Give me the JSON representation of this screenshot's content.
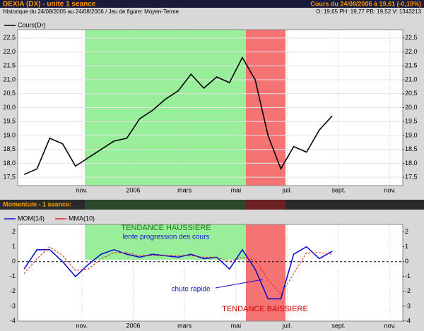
{
  "header": {
    "title": "DEXIA (DX) - unite 1 seance",
    "quote": "Cours du 24/08/2006 à 19,61 (-0,10%)",
    "history": "Historique du 24/08/2005 au 24/08/2006 / Jeu de figure: Moyen-Terme",
    "ohlc": "O: 19,65 PH: 19,77 PB: 19,52 V: 1343213"
  },
  "chart_data": [
    {
      "type": "line",
      "categories": [
        null,
        null,
        null,
        null,
        null,
        "nov.",
        null,
        null,
        null,
        "2006",
        null,
        null,
        null,
        "mars",
        null,
        null,
        null,
        "mai",
        null,
        null,
        null,
        "juil.",
        null,
        null,
        null,
        "sept.",
        null,
        null,
        null,
        "nov."
      ],
      "series": [
        {
          "name": "Cours(Dr)",
          "color": "#000000",
          "values": [
            17.6,
            17.8,
            18.9,
            18.7,
            17.9,
            18.2,
            18.5,
            18.8,
            18.9,
            19.6,
            19.9,
            20.3,
            20.6,
            21.2,
            20.7,
            21.1,
            20.9,
            21.8,
            21.0,
            19.0,
            17.8,
            18.6,
            18.4,
            19.2,
            19.7,
            null,
            null,
            null,
            null,
            null
          ]
        }
      ],
      "ylim": [
        17.2,
        22.8
      ],
      "yticks": [
        {
          "value": 17.5,
          "label": "17,5"
        },
        {
          "value": 18,
          "label": "18,0"
        },
        {
          "value": 18.5,
          "label": "18,5"
        },
        {
          "value": 19,
          "label": "19,0"
        },
        {
          "value": 19.5,
          "label": "19,5"
        },
        {
          "value": 20,
          "label": "20,0"
        },
        {
          "value": 20.5,
          "label": "20,5"
        },
        {
          "value": 21,
          "label": "21,0"
        },
        {
          "value": 21.5,
          "label": "21,5"
        },
        {
          "value": 22,
          "label": "22,0"
        },
        {
          "value": 22.5,
          "label": "22,5"
        }
      ],
      "grid": true
    },
    {
      "type": "line",
      "title": "Momentum - 1 seance:",
      "categories": [
        null,
        null,
        null,
        null,
        null,
        "nov.",
        null,
        null,
        null,
        "2006",
        null,
        null,
        null,
        "mars",
        null,
        null,
        null,
        "mai",
        null,
        null,
        null,
        "juil.",
        null,
        null,
        null,
        "sept.",
        null,
        null,
        null,
        "nov."
      ],
      "series": [
        {
          "name": "MOM(14)",
          "color": "#1010d0",
          "values": [
            -0.5,
            0.8,
            0.8,
            0,
            -1,
            -0.2,
            0.5,
            0.8,
            0.5,
            0.3,
            0.5,
            0.4,
            0.3,
            0.5,
            0.2,
            0.3,
            -0.5,
            0.8,
            -0.5,
            -2.5,
            -2.5,
            0.5,
            1.0,
            0.2,
            0.7,
            null,
            null,
            null,
            null,
            null
          ]
        },
        {
          "name": "MMA(10)",
          "color": "#e02020",
          "values": [
            -0.8,
            0.2,
            1.0,
            0.4,
            -0.6,
            -0.5,
            0.2,
            0.6,
            0.6,
            0.4,
            0.4,
            0.4,
            0.4,
            0.4,
            0.3,
            0.3,
            0.0,
            0.3,
            0.1,
            -1.2,
            -2.2,
            -0.8,
            0.6,
            0.6,
            0.5,
            null,
            null,
            null,
            null,
            null
          ]
        }
      ],
      "annotations": [
        "TENDANCE HAUSSIERE",
        "lente progression des cours",
        "chute rapide",
        "TENDANCE BAISSIERE"
      ],
      "ylim": [
        -4,
        2.5
      ],
      "yticks": [
        -4,
        -3,
        -2,
        -1,
        0,
        1,
        2
      ],
      "grid": false
    }
  ]
}
